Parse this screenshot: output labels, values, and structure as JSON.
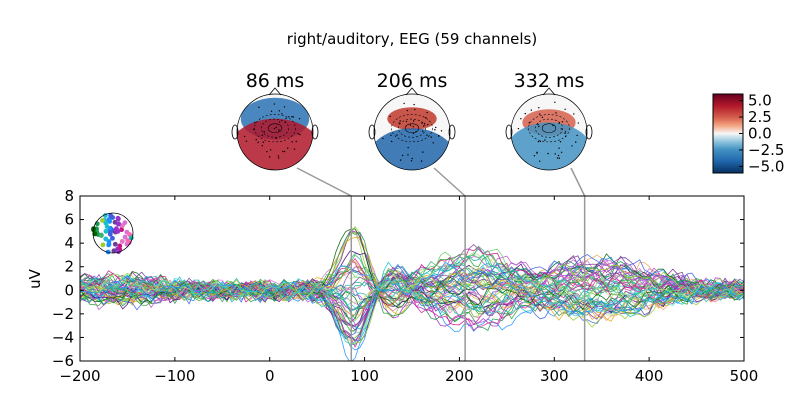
{
  "chart_data": {
    "type": "line",
    "title": "right/auditory, EEG (59 channels)",
    "xlabel": "",
    "ylabel": "uV",
    "xlim": [
      -200,
      500
    ],
    "ylim": [
      -6,
      8
    ],
    "xticks": [
      "−200",
      "−100",
      "0",
      "100",
      "200",
      "300",
      "400",
      "500"
    ],
    "yticks": [
      "−6",
      "−4",
      "−2",
      "0",
      "2",
      "4",
      "6",
      "8"
    ],
    "topomap_times_ms": [
      86,
      206,
      332
    ],
    "topomap_labels": [
      "86 ms",
      "206 ms",
      "332 ms"
    ],
    "colorbar": {
      "range": [
        -6,
        6
      ],
      "ticks": [
        "5.0",
        "2.5",
        "0.0",
        "−2.5",
        "−5.0"
      ],
      "tick_values": [
        5,
        2.5,
        0,
        -2.5,
        -5
      ],
      "colormap": "RdBu_r"
    },
    "grid": false,
    "channel_count": 59,
    "series_colors": [
      "#006400",
      "#1a9850",
      "#2ca02c",
      "#3cb371",
      "#66cc66",
      "#9acd32",
      "#b8e186",
      "#20b2aa",
      "#17becf",
      "#48d1cc",
      "#1e90ff",
      "#3f5fdf",
      "#4b0082",
      "#6a3d9a",
      "#8e44ad",
      "#9932cc",
      "#ba55d3",
      "#c71585",
      "#d62798",
      "#e377c2",
      "#da70d6",
      "#f4a460",
      "#e6a817",
      "#7b2d8e"
    ]
  }
}
